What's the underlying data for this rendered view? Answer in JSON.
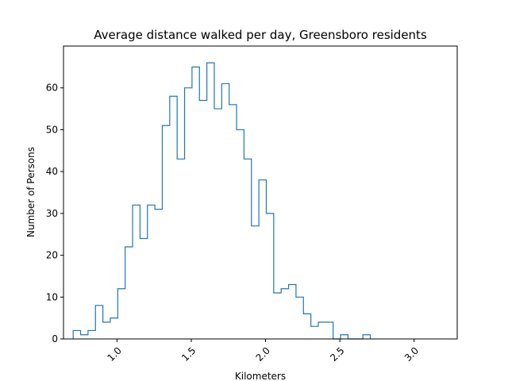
{
  "chart_data": {
    "type": "histogram",
    "title": "Average distance walked per day, Greensboro residents",
    "xlabel": "Kilometers",
    "ylabel": "Number of Persons",
    "xlim": [
      0.64,
      3.29
    ],
    "ylim": [
      0,
      70
    ],
    "xticks": [
      1.0,
      1.5,
      2.0,
      2.5,
      3.0
    ],
    "xtick_labels": [
      "1.0",
      "1.5",
      "2.0",
      "2.5",
      "3.0"
    ],
    "xtick_rotation_deg": 45,
    "yticks": [
      0,
      10,
      20,
      30,
      40,
      50,
      60
    ],
    "ytick_labels": [
      "0",
      "10",
      "20",
      "30",
      "40",
      "50",
      "60"
    ],
    "grid": false,
    "legend": "none",
    "histtype": "step",
    "bin_start": 0.705,
    "bin_width": 0.05,
    "counts": [
      2,
      1,
      2,
      8,
      4,
      5,
      12,
      22,
      32,
      24,
      32,
      31,
      51,
      58,
      43,
      60,
      65,
      57,
      66,
      55,
      61,
      56,
      50,
      43,
      27,
      38,
      30,
      11,
      12,
      13,
      10,
      6,
      3,
      4,
      4,
      0,
      1,
      0,
      0,
      1
    ],
    "line_color": "#1f77b4"
  }
}
